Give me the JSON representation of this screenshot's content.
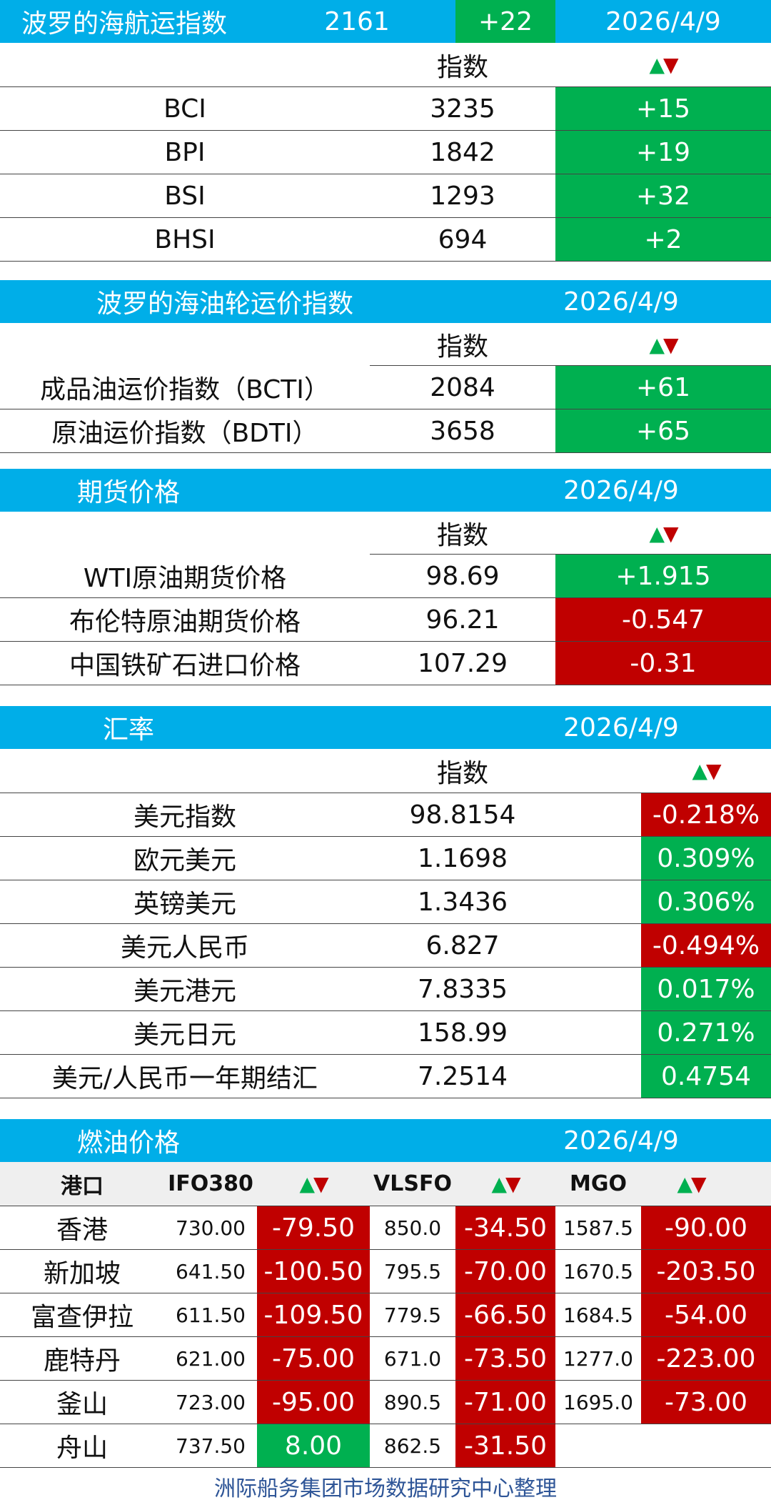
{
  "colors": {
    "header_bg": "#00aee8",
    "positive": "#00b050",
    "negative": "#c00000",
    "footer_text": "#2e5597"
  },
  "baltic_dry": {
    "title": "波罗的海航运指数",
    "value": "2161",
    "change": "+22",
    "date": "2026/4/9",
    "col_index": "指数",
    "rows": [
      {
        "name": "BCI",
        "value": "3235",
        "change": "+15"
      },
      {
        "name": "BPI",
        "value": "1842",
        "change": "+19"
      },
      {
        "name": "BSI",
        "value": "1293",
        "change": "+32"
      },
      {
        "name": "BHSI",
        "value": "694",
        "change": "+2"
      }
    ]
  },
  "tanker": {
    "title": "波罗的海油轮运价指数",
    "date": "2026/4/9",
    "col_index": "指数",
    "rows": [
      {
        "name": "成品油运价指数（BCTI）",
        "value": "2084",
        "change": "+61"
      },
      {
        "name": "原油运价指数（BDTI）",
        "value": "3658",
        "change": "+65"
      }
    ]
  },
  "futures": {
    "title": "期货价格",
    "date": "2026/4/9",
    "col_index": "指数",
    "rows": [
      {
        "name": "WTI原油期货价格",
        "value": "98.69",
        "change": "+1.915"
      },
      {
        "name": "布伦特原油期货价格",
        "value": "96.21",
        "change": "-0.547"
      },
      {
        "name": "中国铁矿石进口价格",
        "value": "107.29",
        "change": "-0.31"
      }
    ]
  },
  "fx": {
    "title": "汇率",
    "date": "2026/4/9",
    "col_index": "指数",
    "rows": [
      {
        "name": "美元指数",
        "value": "98.8154",
        "change": "-0.218%"
      },
      {
        "name": "欧元美元",
        "value": "1.1698",
        "change": "0.309%"
      },
      {
        "name": "英镑美元",
        "value": "1.3436",
        "change": "0.306%"
      },
      {
        "name": "美元人民币",
        "value": "6.827",
        "change": "-0.494%"
      },
      {
        "name": "美元港元",
        "value": "7.8335",
        "change": "0.017%"
      },
      {
        "name": "美元日元",
        "value": "158.99",
        "change": "0.271%"
      },
      {
        "name": "美元/人民币一年期结汇",
        "value": "7.2514",
        "change": "0.4754"
      }
    ]
  },
  "fuel": {
    "title": "燃油价格",
    "date": "2026/4/9",
    "headers": {
      "port": "港口",
      "ifo": "IFO380",
      "vlsfo": "VLSFO",
      "mgo": "MGO"
    },
    "rows": [
      {
        "port": "香港",
        "ifo": "730.00",
        "ifo_chg": "-79.50",
        "vlsfo": "850.0",
        "vlsfo_chg": "-34.50",
        "mgo": "1587.5",
        "mgo_chg": "-90.00"
      },
      {
        "port": "新加坡",
        "ifo": "641.50",
        "ifo_chg": "-100.50",
        "vlsfo": "795.5",
        "vlsfo_chg": "-70.00",
        "mgo": "1670.5",
        "mgo_chg": "-203.50"
      },
      {
        "port": "富查伊拉",
        "ifo": "611.50",
        "ifo_chg": "-109.50",
        "vlsfo": "779.5",
        "vlsfo_chg": "-66.50",
        "mgo": "1684.5",
        "mgo_chg": "-54.00"
      },
      {
        "port": "鹿特丹",
        "ifo": "621.00",
        "ifo_chg": "-75.00",
        "vlsfo": "671.0",
        "vlsfo_chg": "-73.50",
        "mgo": "1277.0",
        "mgo_chg": "-223.00"
      },
      {
        "port": "釜山",
        "ifo": "723.00",
        "ifo_chg": "-95.00",
        "vlsfo": "890.5",
        "vlsfo_chg": "-71.00",
        "mgo": "1695.0",
        "mgo_chg": "-73.00"
      },
      {
        "port": "舟山",
        "ifo": "737.50",
        "ifo_chg": "8.00",
        "vlsfo": "862.5",
        "vlsfo_chg": "-31.50",
        "mgo": "",
        "mgo_chg": ""
      }
    ]
  },
  "footer": "洲际船务集团市场数据研究中心整理"
}
